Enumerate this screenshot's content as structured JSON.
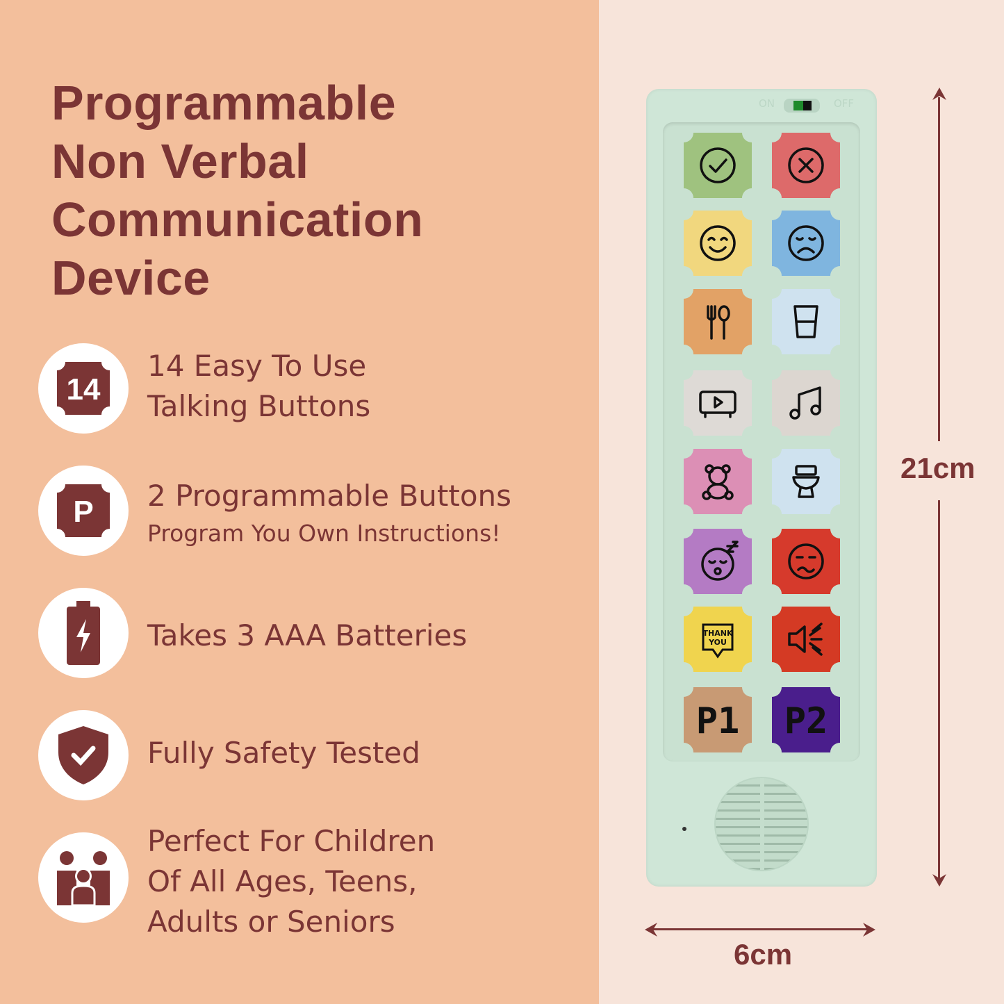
{
  "title": [
    "Programmable",
    "Non Verbal",
    "Communication",
    "Device"
  ],
  "features": [
    {
      "icon": "number-14-badge-icon",
      "badge": "14",
      "lines": [
        "14 Easy To Use",
        "Talking Buttons"
      ]
    },
    {
      "icon": "p-badge-icon",
      "badge": "P",
      "lines": [
        "2 Programmable Buttons"
      ],
      "sub": "Program You Own Instructions!"
    },
    {
      "icon": "battery-icon",
      "lines": [
        "Takes 3 AAA Batteries"
      ]
    },
    {
      "icon": "shield-check-icon",
      "lines": [
        "Fully Safety Tested"
      ]
    },
    {
      "icon": "family-icon",
      "lines": [
        "Perfect For Children",
        "Of All Ages, Teens,",
        "Adults or Seniors"
      ]
    }
  ],
  "device": {
    "switch": {
      "on": "ON",
      "off": "OFF"
    },
    "buttons": [
      {
        "icon": "check-icon",
        "color": "#9fc27f"
      },
      {
        "icon": "cross-icon",
        "color": "#dd6a6a"
      },
      {
        "icon": "happy-face-icon",
        "color": "#f1d77e"
      },
      {
        "icon": "sad-face-icon",
        "color": "#7fb5df"
      },
      {
        "icon": "cutlery-icon",
        "color": "#e2a266"
      },
      {
        "icon": "glass-icon",
        "color": "#cfe2ef"
      },
      {
        "icon": "tv-icon",
        "color": "#dedad6"
      },
      {
        "icon": "music-icon",
        "color": "#dcd6d0"
      },
      {
        "icon": "teddy-bear-icon",
        "color": "#dc8fb5"
      },
      {
        "icon": "toilet-icon",
        "color": "#cfe2ef"
      },
      {
        "icon": "sleepy-face-icon",
        "color": "#b47bc4"
      },
      {
        "icon": "upset-face-icon",
        "color": "#d63a2c"
      },
      {
        "icon": "thank-you-icon",
        "color": "#f0d44e",
        "text": "THANK YOU"
      },
      {
        "icon": "loud-speaker-icon",
        "color": "#d43a24"
      },
      {
        "icon": "p1-label",
        "color": "#c89a74",
        "text": "P1"
      },
      {
        "icon": "p2-label",
        "color": "#4a1e8c",
        "text": "P2"
      }
    ]
  },
  "dimensions": {
    "height": "21cm",
    "width": "6cm"
  },
  "colors": {
    "accent": "#7b3535",
    "left_bg": "#f3bf9c",
    "right_bg": "#f7e4da",
    "device": "#cfe6d7"
  }
}
